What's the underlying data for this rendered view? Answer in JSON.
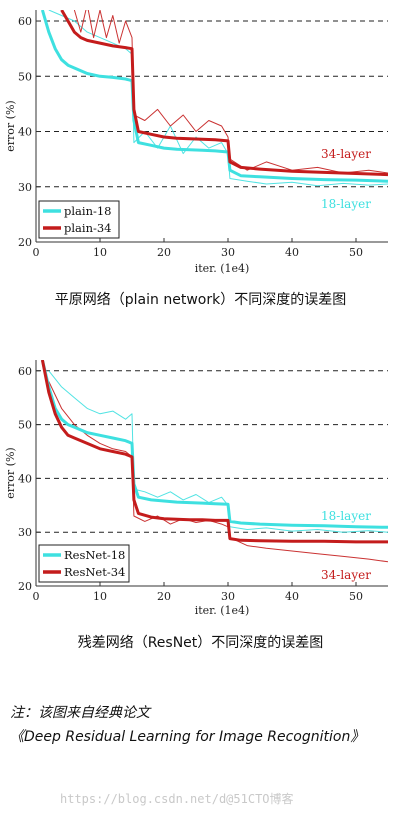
{
  "chart_data": [
    {
      "type": "line",
      "xlabel": "iter. (1e4)",
      "ylabel": "error (%)",
      "xlim": [
        0,
        55
      ],
      "ylim": [
        20,
        62
      ],
      "xticks": [
        0,
        10,
        20,
        30,
        40,
        50
      ],
      "yticks": [
        20,
        30,
        40,
        50,
        60
      ],
      "grid": "dashed-horizontal",
      "legend_position": "bottom-left",
      "series_labels": [
        "34-layer",
        "18-layer"
      ],
      "series": [
        {
          "name": "plain-18",
          "style": "bold",
          "color": "#3ee0e0",
          "x": [
            1,
            2,
            3,
            4,
            5,
            6,
            8,
            10,
            12,
            14,
            15,
            15.3,
            16,
            18,
            20,
            22,
            24,
            26,
            28,
            30,
            30.3,
            32,
            35,
            40,
            45,
            50,
            55
          ],
          "y": [
            62,
            58,
            55,
            53,
            52,
            51.5,
            50.5,
            50,
            49.8,
            49.5,
            49.2,
            42,
            38,
            37.5,
            37,
            36.8,
            36.7,
            36.6,
            36.5,
            36.3,
            33,
            32,
            31.8,
            31.5,
            31.3,
            31.2,
            31
          ]
        },
        {
          "name": "plain-34",
          "style": "bold",
          "color": "#c41c1c",
          "x": [
            4,
            5,
            6,
            7,
            8,
            10,
            12,
            14,
            15,
            15.3,
            16,
            18,
            20,
            22,
            24,
            26,
            28,
            30,
            30.3,
            32,
            35,
            40,
            45,
            50,
            55
          ],
          "y": [
            62,
            60,
            58,
            57,
            56.5,
            56,
            55.5,
            55.2,
            55,
            44,
            40,
            39.5,
            39,
            38.8,
            38.7,
            38.6,
            38.5,
            38.3,
            34.5,
            33.5,
            33.2,
            32.8,
            32.6,
            32.4,
            32.2
          ]
        },
        {
          "name": "plain-18 train",
          "style": "thin",
          "color": "#3ee0e0",
          "x": [
            2,
            4,
            6,
            8,
            10,
            12,
            14,
            15,
            15.3,
            17,
            19,
            21,
            23,
            25,
            27,
            29,
            30,
            30.3,
            33,
            36,
            40,
            44,
            48,
            52,
            55
          ],
          "y": [
            62,
            61,
            60,
            58,
            57,
            56,
            55,
            54,
            38,
            40,
            37,
            41,
            36,
            39,
            37,
            38,
            36,
            31.5,
            31,
            30.5,
            30.8,
            30.2,
            30.6,
            30.3,
            30.5
          ]
        },
        {
          "name": "plain-34 train",
          "style": "thin",
          "color": "#c41c1c",
          "x": [
            6,
            7,
            8,
            9,
            10,
            11,
            12,
            13,
            14,
            15,
            15.3,
            17,
            19,
            21,
            23,
            25,
            27,
            29,
            30,
            30.3,
            33,
            36,
            40,
            44,
            48,
            52,
            55
          ],
          "y": [
            62,
            58,
            63,
            57,
            62,
            57,
            61,
            56,
            60,
            57,
            43,
            42,
            44,
            41,
            43,
            40,
            42,
            41,
            39,
            35,
            33,
            34.5,
            33,
            33.5,
            32.5,
            33,
            32.5
          ]
        }
      ]
    },
    {
      "type": "line",
      "xlabel": "iter. (1e4)",
      "ylabel": "error (%)",
      "xlim": [
        0,
        55
      ],
      "ylim": [
        20,
        62
      ],
      "xticks": [
        0,
        10,
        20,
        30,
        40,
        50
      ],
      "yticks": [
        20,
        30,
        40,
        50,
        60
      ],
      "grid": "dashed-horizontal",
      "legend_position": "bottom-left",
      "series_labels": [
        "18-layer",
        "34-layer"
      ],
      "series": [
        {
          "name": "ResNet-18",
          "style": "bold",
          "color": "#3ee0e0",
          "x": [
            1,
            2,
            3,
            4,
            5,
            6,
            8,
            10,
            12,
            14,
            15,
            15.3,
            16,
            18,
            20,
            22,
            24,
            26,
            28,
            30,
            30.3,
            32,
            35,
            40,
            45,
            50,
            55
          ],
          "y": [
            62,
            57,
            53,
            51,
            50,
            49.5,
            48.5,
            48,
            47.5,
            47,
            46.5,
            39,
            36.5,
            36,
            35.8,
            35.6,
            35.5,
            35.4,
            35.3,
            35.2,
            32,
            31.7,
            31.5,
            31.3,
            31.2,
            31,
            30.9
          ]
        },
        {
          "name": "ResNet-34",
          "style": "bold",
          "color": "#c41c1c",
          "x": [
            1,
            2,
            3,
            4,
            5,
            6,
            8,
            10,
            12,
            14,
            15,
            15.3,
            16,
            18,
            20,
            22,
            24,
            26,
            28,
            30,
            30.3,
            32,
            35,
            40,
            45,
            50,
            55
          ],
          "y": [
            62,
            56,
            52,
            49.5,
            48,
            47.5,
            46.5,
            45.5,
            45,
            44.5,
            44,
            36,
            33.5,
            32.8,
            32.5,
            32.4,
            32.3,
            32.3,
            32.2,
            32.2,
            28.8,
            28.5,
            28.4,
            28.3,
            28.3,
            28.2,
            28.2
          ]
        },
        {
          "name": "ResNet-18 train",
          "style": "thin",
          "color": "#3ee0e0",
          "x": [
            2,
            4,
            6,
            8,
            10,
            12,
            14,
            15,
            15.3,
            17,
            19,
            21,
            23,
            25,
            27,
            29,
            30,
            30.3,
            33,
            36,
            40,
            44,
            48,
            52,
            55
          ],
          "y": [
            60,
            57,
            55,
            53,
            52,
            52.5,
            51,
            52,
            38,
            37.5,
            36.5,
            37.5,
            36,
            37,
            35.5,
            36.5,
            35,
            31,
            30.5,
            30.8,
            30.2,
            30.5,
            30,
            30.3,
            30
          ]
        },
        {
          "name": "ResNet-34 train",
          "style": "thin",
          "color": "#c41c1c",
          "x": [
            2,
            4,
            6,
            8,
            10,
            12,
            14,
            15,
            15.3,
            17,
            19,
            21,
            23,
            25,
            27,
            29,
            30,
            30.3,
            33,
            36,
            40,
            44,
            48,
            52,
            55
          ],
          "y": [
            58,
            53,
            50,
            48,
            46.5,
            45.5,
            45,
            44,
            33,
            32,
            33,
            31.5,
            32.5,
            31.8,
            32.2,
            31.5,
            31,
            29,
            27.5,
            27,
            26.5,
            26,
            25.5,
            25,
            24.5
          ]
        }
      ]
    }
  ],
  "captions": {
    "chart1": "平原网络（plain network）不同深度的误差图",
    "chart2": "残差网络（ResNet）不同深度的误差图"
  },
  "note": {
    "line1": "注：该图来自经典论文",
    "line2": "《Deep Residual Learning for Image Recognition》"
  },
  "watermark": "https://blog.csdn.net/d@51CTO博客"
}
